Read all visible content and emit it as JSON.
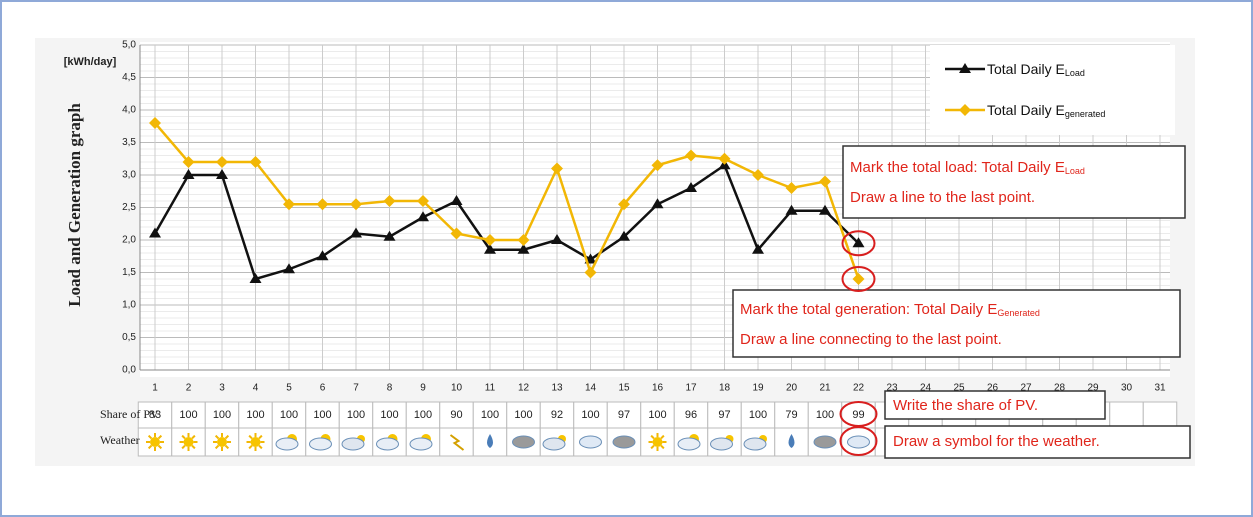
{
  "chart_data": {
    "type": "line",
    "y_unit": "[kWh/day]",
    "ylabel": "Load and Generation graph",
    "categories": [
      "1",
      "2",
      "3",
      "4",
      "5",
      "6",
      "7",
      "8",
      "9",
      "10",
      "11",
      "12",
      "13",
      "14",
      "15",
      "16",
      "17",
      "18",
      "19",
      "20",
      "21",
      "22",
      "23",
      "24",
      "25",
      "26",
      "27",
      "28",
      "29",
      "30",
      "31"
    ],
    "series": [
      {
        "name": "Total Daily E",
        "subscript": "Load",
        "color": "#111111",
        "values": [
          2.1,
          3.0,
          3.0,
          1.4,
          1.55,
          1.75,
          2.1,
          2.05,
          2.35,
          2.6,
          1.85,
          1.85,
          2.0,
          1.7,
          2.05,
          2.55,
          2.8,
          3.15,
          1.85,
          2.45,
          2.45,
          1.95,
          null,
          null,
          null,
          null,
          null,
          null,
          null,
          null,
          null
        ]
      },
      {
        "name": "Total Daily E",
        "subscript": "generated",
        "color": "#f2b705",
        "values": [
          3.8,
          3.2,
          3.2,
          3.2,
          2.55,
          2.55,
          2.55,
          2.6,
          2.6,
          2.1,
          2.0,
          2.0,
          3.1,
          1.5,
          2.55,
          3.15,
          3.3,
          3.25,
          3.0,
          2.8,
          2.9,
          1.4,
          null,
          null,
          null,
          null,
          null,
          null,
          null,
          null,
          null
        ]
      }
    ],
    "ylim": [
      0,
      5
    ],
    "yticks": [
      {
        "value": 0,
        "label": "0,0"
      },
      {
        "value": 0.5,
        "label": "0,5"
      },
      {
        "value": 1,
        "label": "1,0"
      },
      {
        "value": 1.5,
        "label": "1,5"
      },
      {
        "value": 2,
        "label": "2,0"
      },
      {
        "value": 2.5,
        "label": "2,5"
      },
      {
        "value": 3,
        "label": "3,0"
      },
      {
        "value": 3.5,
        "label": "3,5"
      },
      {
        "value": 4,
        "label": "4,0"
      },
      {
        "value": 4.5,
        "label": "4,5"
      },
      {
        "value": 5,
        "label": "5,0"
      }
    ],
    "grid": true,
    "legend": "upper right",
    "table": {
      "share_label": "Share of PV",
      "weather_label": "Weather",
      "share": [
        83,
        100,
        100,
        100,
        100,
        100,
        100,
        100,
        100,
        90,
        100,
        100,
        92,
        100,
        97,
        100,
        96,
        97,
        100,
        79,
        100,
        99
      ]
    },
    "annotations": {
      "load_box": {
        "line1": "Mark the total load: Total Daily E",
        "sub": "Load",
        "line2": "Draw a line to the last point."
      },
      "gen_box": {
        "line1": "Mark the total generation: Total Daily E",
        "sub": "Generated",
        "line2": "Draw a line connecting to the last point."
      },
      "share_box": "Write the share of PV.",
      "weather_box": "Draw a symbol for the weather."
    }
  }
}
